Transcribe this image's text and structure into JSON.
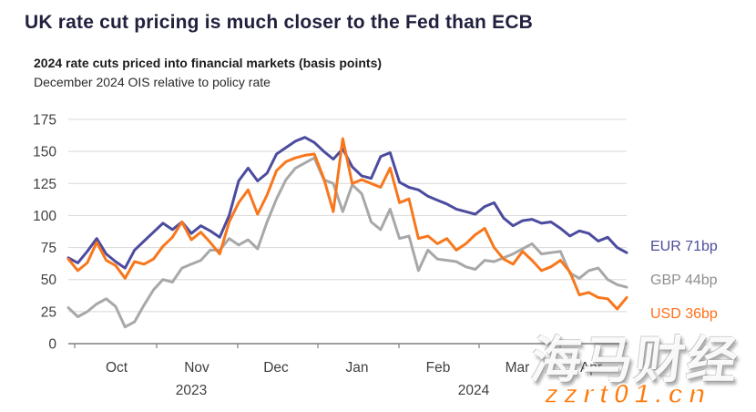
{
  "page": {
    "title": "UK rate cut pricing is much closer to the Fed than ECB"
  },
  "chart": {
    "subtitle_bold": "2024 rate cuts priced into financial markets (basis points)",
    "subtitle": "December 2024 OIS relative to policy rate"
  },
  "chart_data": {
    "type": "line",
    "title": "2024 rate cuts priced into financial markets (basis points)",
    "subtitle": "December 2024 OIS relative to policy rate",
    "unit": "bp",
    "x_description": "60 evenly spaced samples, late Sep 2023 to mid Apr 2024",
    "x_axis": {
      "month_labels": [
        "Oct",
        "Nov",
        "Dec",
        "Jan",
        "Feb",
        "Mar",
        "Apr"
      ],
      "year_labels": [
        "2023",
        "2024"
      ]
    },
    "y_axis": {
      "ticks": [
        0,
        25,
        50,
        75,
        100,
        125,
        150,
        175
      ],
      "range": [
        0,
        175
      ],
      "grid": true
    },
    "legend_position": "right-end-labels",
    "series": [
      {
        "name": "EUR",
        "end_label": "EUR 71bp",
        "end_value": 71,
        "color": "#4C4B9E",
        "values": [
          67,
          63,
          72,
          82,
          70,
          64,
          59,
          73,
          80,
          87,
          94,
          89,
          95,
          86,
          92,
          88,
          83,
          100,
          127,
          137,
          127,
          133,
          148,
          153,
          158,
          161,
          157,
          150,
          144,
          152,
          138,
          131,
          129,
          146,
          149,
          126,
          122,
          120,
          115,
          112,
          109,
          105,
          103,
          101,
          107,
          110,
          98,
          92,
          96,
          97,
          94,
          95,
          90,
          84,
          88,
          86,
          80,
          83,
          75,
          71
        ]
      },
      {
        "name": "GBP",
        "end_label": "GBP 44bp",
        "end_value": 44,
        "color": "#A8A8A8",
        "text_color": "#8f8f8f",
        "values": [
          28,
          21,
          25,
          31,
          35,
          29,
          13,
          17,
          30,
          42,
          50,
          48,
          59,
          62,
          65,
          73,
          73,
          82,
          77,
          81,
          74,
          95,
          113,
          128,
          137,
          141,
          145,
          128,
          125,
          103,
          124,
          117,
          95,
          89,
          105,
          82,
          84,
          57,
          73,
          66,
          65,
          64,
          60,
          58,
          65,
          64,
          67,
          70,
          74,
          78,
          70,
          71,
          72,
          55,
          51,
          57,
          59,
          50,
          46,
          44
        ]
      },
      {
        "name": "USD",
        "end_label": "USD 36bp",
        "end_value": 36,
        "color": "#F8771C",
        "text_color": "#ff6f1a",
        "values": [
          66,
          57,
          63,
          79,
          65,
          61,
          51,
          64,
          62,
          66,
          76,
          83,
          95,
          81,
          87,
          79,
          70,
          95,
          110,
          120,
          101,
          116,
          135,
          142,
          145,
          147,
          148,
          129,
          103,
          160,
          125,
          128,
          125,
          122,
          137,
          110,
          113,
          82,
          84,
          78,
          82,
          73,
          78,
          85,
          90,
          75,
          66,
          62,
          72,
          65,
          57,
          60,
          65,
          56,
          38,
          40,
          36,
          35,
          27,
          36
        ]
      }
    ]
  },
  "watermark": {
    "line1": "海马财经",
    "line2": "zzrt01.cn",
    "url_color": "#ff7b0d"
  }
}
